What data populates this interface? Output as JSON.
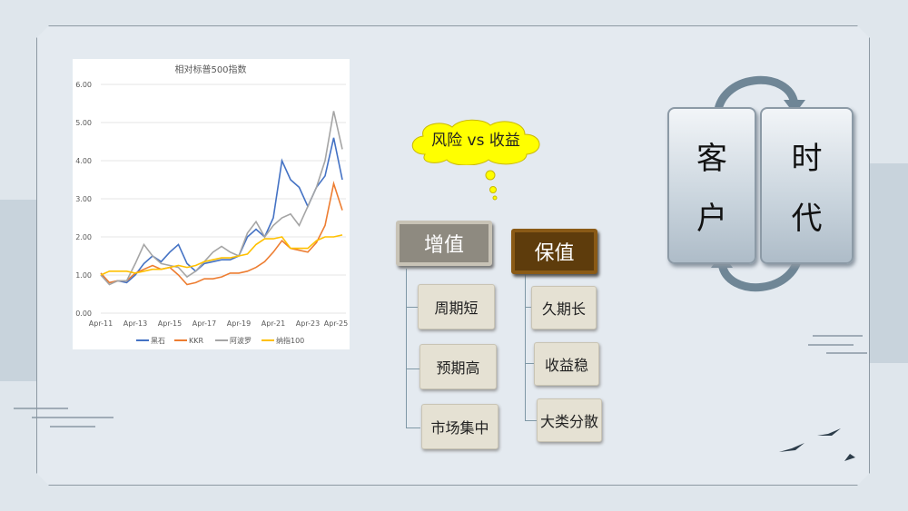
{
  "chart_data": {
    "type": "line",
    "title": "相对标普500指数",
    "xlabel": "",
    "ylabel": "",
    "ylim": [
      0,
      6
    ],
    "yticks": [
      "0.00",
      "1.00",
      "2.00",
      "3.00",
      "4.00",
      "5.00",
      "6.00"
    ],
    "xticks": [
      "Apr-11",
      "Apr-13",
      "Apr-15",
      "Apr-17",
      "Apr-19",
      "Apr-21",
      "Apr-23",
      "Apr-25"
    ],
    "grid": "horizontal",
    "legend": "bottom",
    "x": [
      "2011-04",
      "2011-10",
      "2012-04",
      "2012-10",
      "2013-04",
      "2013-10",
      "2014-04",
      "2014-10",
      "2015-04",
      "2015-10",
      "2016-04",
      "2016-10",
      "2017-04",
      "2017-10",
      "2018-04",
      "2018-10",
      "2019-04",
      "2019-10",
      "2020-04",
      "2020-10",
      "2021-04",
      "2021-10",
      "2022-04",
      "2022-10",
      "2023-04",
      "2023-10",
      "2024-04",
      "2024-10",
      "2025-04"
    ],
    "series": [
      {
        "name": "黑石",
        "color": "#4472c4",
        "values": [
          1.0,
          0.8,
          0.85,
          0.8,
          1.0,
          1.3,
          1.5,
          1.35,
          1.6,
          1.8,
          1.3,
          1.1,
          1.3,
          1.35,
          1.4,
          1.4,
          1.5,
          2.0,
          2.2,
          2.0,
          2.5,
          4.0,
          3.5,
          3.3,
          2.8,
          3.3,
          3.6,
          4.6,
          3.5
        ]
      },
      {
        "name": "KKR",
        "color": "#ed7d31",
        "values": [
          1.05,
          0.8,
          0.85,
          0.85,
          1.05,
          1.15,
          1.25,
          1.15,
          1.2,
          1.0,
          0.75,
          0.8,
          0.9,
          0.9,
          0.95,
          1.05,
          1.05,
          1.1,
          1.2,
          1.35,
          1.6,
          1.9,
          1.7,
          1.65,
          1.6,
          1.85,
          2.3,
          3.4,
          2.7
        ]
      },
      {
        "name": "阿波罗",
        "color": "#a5a5a5",
        "values": [
          1.0,
          0.75,
          0.85,
          0.85,
          1.3,
          1.8,
          1.5,
          1.3,
          1.25,
          1.2,
          0.95,
          1.1,
          1.35,
          1.6,
          1.75,
          1.6,
          1.5,
          2.1,
          2.4,
          2.0,
          2.3,
          2.5,
          2.6,
          2.3,
          2.8,
          3.3,
          4.0,
          5.3,
          4.3
        ]
      },
      {
        "name": "纳指100",
        "color": "#ffc000",
        "values": [
          1.0,
          1.1,
          1.1,
          1.1,
          1.05,
          1.1,
          1.15,
          1.15,
          1.2,
          1.25,
          1.2,
          1.25,
          1.35,
          1.4,
          1.45,
          1.45,
          1.5,
          1.55,
          1.8,
          1.95,
          1.95,
          2.0,
          1.7,
          1.7,
          1.7,
          1.9,
          2.0,
          2.0,
          2.05
        ]
      }
    ]
  },
  "bubble": {
    "text": "风险 vs 收益",
    "color": "#ffff00"
  },
  "growth": {
    "title": "增值",
    "items": [
      "周期短",
      "预期高",
      "市场集中"
    ]
  },
  "preserve": {
    "title": "保值",
    "items": [
      "久期长",
      "收益稳",
      "大类分散"
    ]
  },
  "cycle": {
    "left": [
      "客",
      "户"
    ],
    "right": [
      "时",
      "代"
    ]
  }
}
